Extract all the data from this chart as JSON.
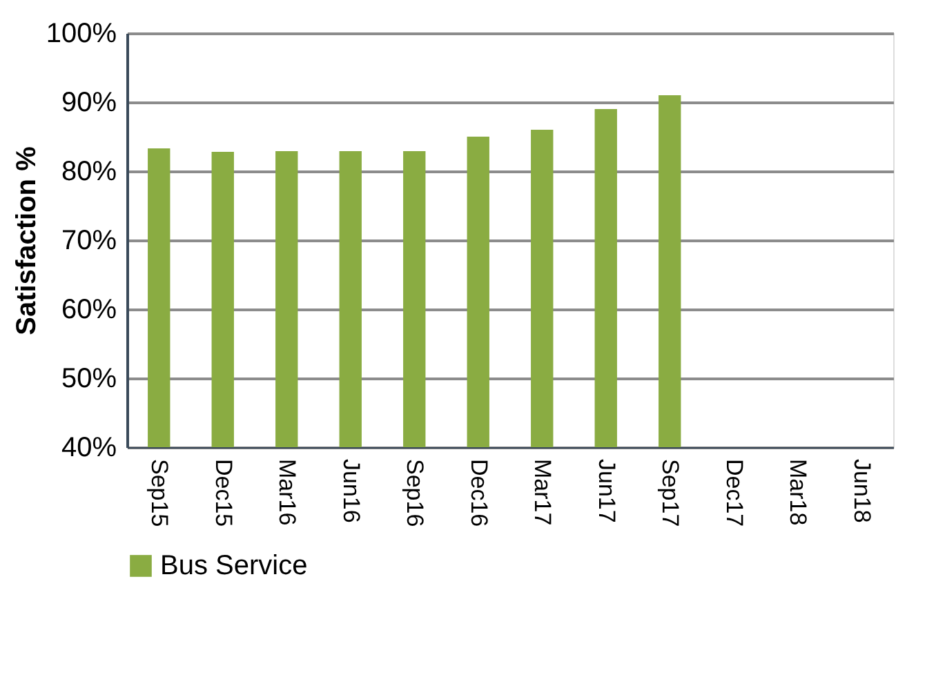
{
  "chart_data": {
    "type": "bar",
    "ylabel": "Satisfaction %",
    "categories": [
      "Sep15",
      "Dec15",
      "Mar16",
      "Jun16",
      "Sep16",
      "Dec16",
      "Mar17",
      "Jun17",
      "Sep17",
      "Dec17",
      "Mar18",
      "Jun18"
    ],
    "series": [
      {
        "name": "Bus Service",
        "color": "#8aac42",
        "values": [
          83.3,
          82.8,
          82.9,
          82.9,
          82.9,
          85,
          86,
          89,
          91,
          null,
          null,
          null
        ]
      }
    ],
    "ylim": [
      40,
      100
    ],
    "yticks": [
      {
        "value": 40,
        "label": "40%"
      },
      {
        "value": 50,
        "label": "50%"
      },
      {
        "value": 60,
        "label": "60%"
      },
      {
        "value": 70,
        "label": "70%"
      },
      {
        "value": 80,
        "label": "80%"
      },
      {
        "value": 90,
        "label": "90%"
      },
      {
        "value": 100,
        "label": "100%"
      }
    ],
    "grid": "y",
    "legend": "bottom"
  }
}
